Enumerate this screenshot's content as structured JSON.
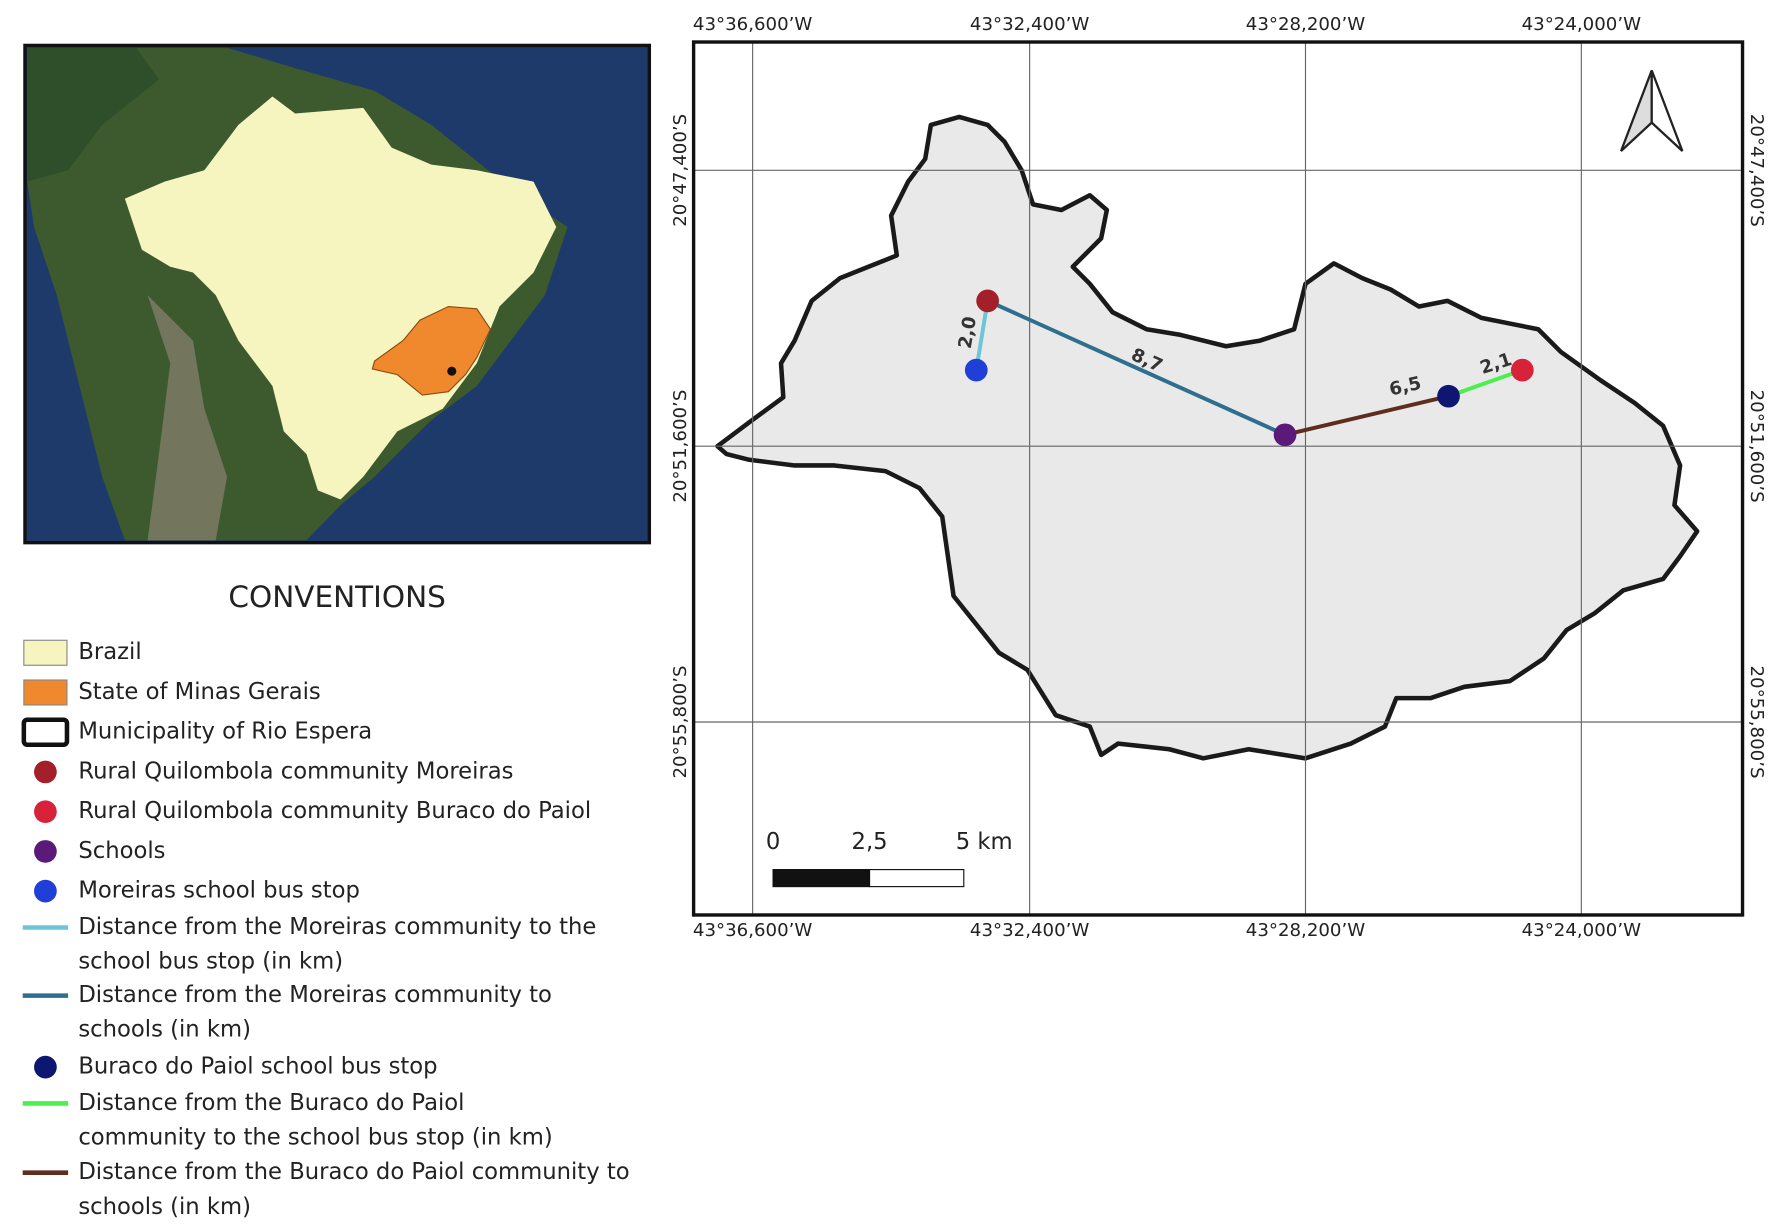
{
  "legend": {
    "title": "CONVENTIONS",
    "items": [
      {
        "lines": [
          "Brazil"
        ]
      },
      {
        "lines": [
          "State of Minas Gerais"
        ]
      },
      {
        "lines": [
          "Municipality of Rio Espera"
        ]
      },
      {
        "lines": [
          "Rural Quilombola community Moreiras"
        ]
      },
      {
        "lines": [
          "Rural Quilombola community Buraco do Paiol"
        ]
      },
      {
        "lines": [
          "Schools"
        ]
      },
      {
        "lines": [
          "Moreiras school bus stop"
        ]
      },
      {
        "lines": [
          "Distance from the Moreiras community to the",
          "school bus stop (in km)"
        ]
      },
      {
        "lines": [
          "Distance from the Moreiras community to",
          "schools (in km)"
        ]
      },
      {
        "lines": [
          "Buraco do Paiol school bus stop"
        ]
      },
      {
        "lines": [
          "Distance from the Buraco do Paiol",
          "community to the school bus stop (in km)"
        ]
      },
      {
        "lines": [
          "Distance from the Buraco do Paiol community to",
          "schools (in km)"
        ]
      }
    ]
  },
  "map": {
    "lon_labels": [
      "43°36,600’W",
      "43°32,400’W",
      "43°28,200’W",
      "43°24,000’W"
    ],
    "lat_labels": [
      "20°47,400’S",
      "20°51,600’S",
      "20°55,800’S"
    ],
    "scale_bar": {
      "labels": [
        "0",
        "2,5",
        "5 km"
      ]
    },
    "distance_labels": [
      "2,0",
      "8,7",
      "6,5",
      "2,1"
    ]
  }
}
